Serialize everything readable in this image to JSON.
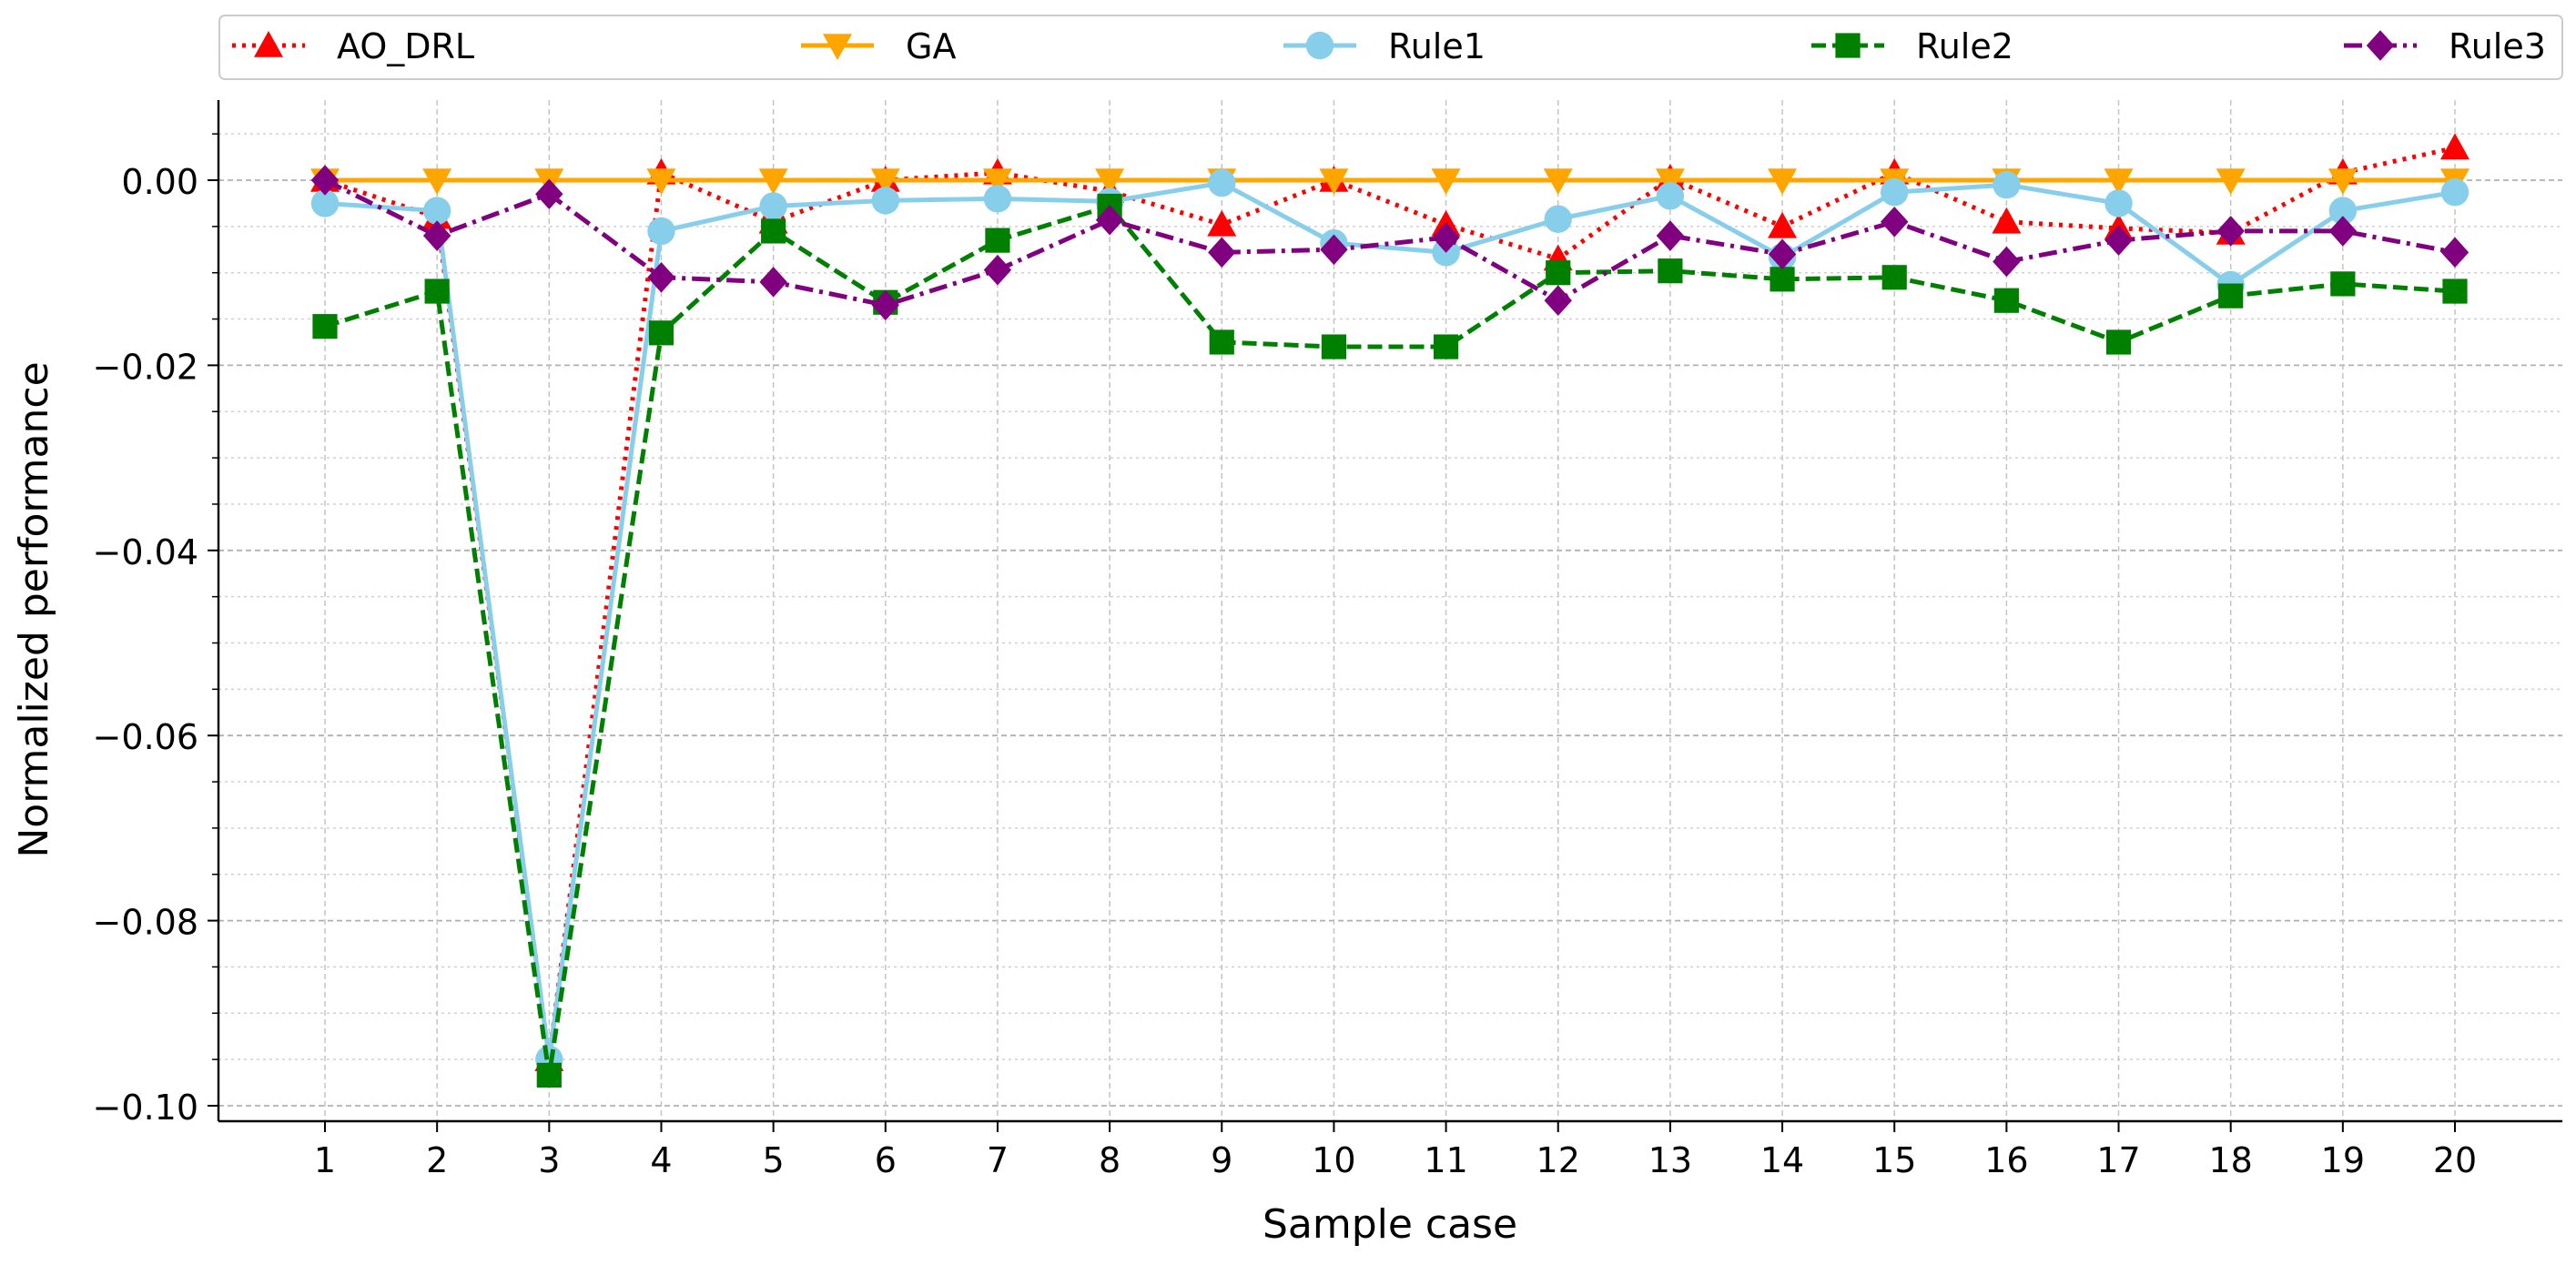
{
  "chart_data": {
    "type": "line",
    "title": "",
    "xlabel": "Sample case",
    "ylabel": "Normalized performance",
    "categories": [
      "1",
      "2",
      "3",
      "4",
      "5",
      "6",
      "7",
      "8",
      "9",
      "10",
      "11",
      "12",
      "13",
      "14",
      "15",
      "16",
      "17",
      "18",
      "19",
      "20"
    ],
    "yticks": [
      0.0,
      -0.02,
      -0.04,
      -0.06,
      -0.08,
      -0.1
    ],
    "ytick_labels": [
      "0.00",
      "−0.02",
      "−0.04",
      "−0.06",
      "−0.08",
      "−0.10"
    ],
    "ylim": [
      -0.1018,
      0.0087
    ],
    "grid": true,
    "legend_position": "top",
    "series": [
      {
        "name": "AO_DRL",
        "color": "#ff0000",
        "line": "dotted",
        "marker": "triangle-up",
        "values": [
          0.0,
          -0.004,
          -0.095,
          0.0008,
          -0.0045,
          0.0,
          0.0008,
          -0.0012,
          -0.0048,
          0.0,
          -0.0048,
          -0.0085,
          0.0002,
          -0.005,
          0.0008,
          -0.0045,
          -0.0052,
          -0.0057,
          0.0008,
          0.0035
        ]
      },
      {
        "name": "GA",
        "color": "#ffa500",
        "line": "solid",
        "marker": "triangle-down",
        "values": [
          0,
          0,
          0,
          0,
          0,
          0,
          0,
          0,
          0,
          0,
          0,
          0,
          0,
          0,
          0,
          0,
          0,
          0,
          0,
          0
        ]
      },
      {
        "name": "Rule1",
        "color": "#87ceeb",
        "line": "solid",
        "marker": "circle",
        "values": [
          -0.0025,
          -0.0033,
          -0.095,
          -0.0055,
          -0.0028,
          -0.0022,
          -0.002,
          -0.0023,
          -0.0003,
          -0.0068,
          -0.0078,
          -0.0042,
          -0.0017,
          -0.0083,
          -0.0013,
          -0.0005,
          -0.0025,
          -0.0113,
          -0.0033,
          -0.0013
        ]
      },
      {
        "name": "Rule2",
        "color": "#008000",
        "line": "dashed",
        "marker": "square",
        "values": [
          -0.0158,
          -0.012,
          -0.0967,
          -0.0165,
          -0.0055,
          -0.0132,
          -0.0065,
          -0.0028,
          -0.0175,
          -0.018,
          -0.018,
          -0.01,
          -0.0098,
          -0.0107,
          -0.0105,
          -0.013,
          -0.0175,
          -0.0125,
          -0.0112,
          -0.012
        ]
      },
      {
        "name": "Rule3",
        "color": "#800080",
        "line": "dashdot",
        "marker": "diamond",
        "values": [
          0.0,
          -0.006,
          -0.0015,
          -0.0105,
          -0.011,
          -0.0135,
          -0.0097,
          -0.0043,
          -0.0078,
          -0.0075,
          -0.0062,
          -0.013,
          -0.006,
          -0.008,
          -0.0045,
          -0.0088,
          -0.0065,
          -0.0055,
          -0.0055,
          -0.0078
        ]
      }
    ]
  }
}
